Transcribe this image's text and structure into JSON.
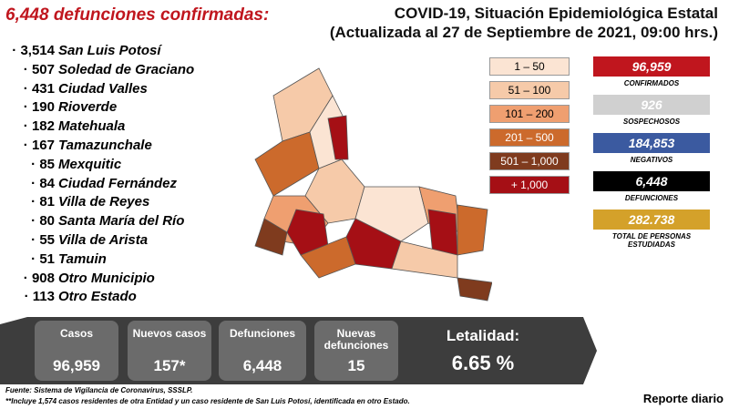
{
  "header": {
    "left_title": "6,448 defunciones confirmadas:",
    "title": "COVID-19, Situación Epidemiológica Estatal",
    "subtitle": "(Actualizada al 27 de Septiembre de 2021, 09:00 hrs.)"
  },
  "municipalities": [
    {
      "count": "3,514",
      "name": "San Luis Potosí"
    },
    {
      "count": "507",
      "name": "Soledad de Graciano"
    },
    {
      "count": "431",
      "name": "Ciudad Valles"
    },
    {
      "count": "190",
      "name": "Rioverde"
    },
    {
      "count": "182",
      "name": "Matehuala"
    },
    {
      "count": "167",
      "name": "Tamazunchale"
    },
    {
      "count": "85",
      "name": "Mexquitic"
    },
    {
      "count": "84",
      "name": "Ciudad Fernández"
    },
    {
      "count": "81",
      "name": "Villa de Reyes"
    },
    {
      "count": "80",
      "name": "Santa María del Río"
    },
    {
      "count": "55",
      "name": "Villa de Arista"
    },
    {
      "count": "51",
      "name": "Tamuin"
    },
    {
      "count": "908",
      "name": "Otro Municipio"
    },
    {
      "count": "113",
      "name": "Otro Estado"
    }
  ],
  "legend": [
    {
      "label": "1 – 50",
      "color": "#fbe4d3",
      "text_color": "#000"
    },
    {
      "label": "51 – 100",
      "color": "#f6caa9",
      "text_color": "#000"
    },
    {
      "label": "101 – 200",
      "color": "#ef9f70",
      "text_color": "#000"
    },
    {
      "label": "201 – 500",
      "color": "#cc6a2c",
      "text_color": "#fff"
    },
    {
      "label": "501 – 1,000",
      "color": "#7f3b1e",
      "text_color": "#fff"
    },
    {
      "label": "+ 1,000",
      "color": "#a50f15",
      "text_color": "#fff"
    }
  ],
  "stats": [
    {
      "value": "96,959",
      "label": "CONFIRMADOS",
      "color": "#c0161e",
      "text_color": "#fff"
    },
    {
      "value": "926",
      "label": "SOSPECHOSOS",
      "color": "#d0d0d0",
      "text_color": "#fff"
    },
    {
      "value": "184,853",
      "label": "NEGATIVOS",
      "color": "#3b5aa0",
      "text_color": "#fff"
    },
    {
      "value": "6,448",
      "label": "DEFUNCIONES",
      "color": "#000000",
      "text_color": "#fff"
    },
    {
      "value": "282.738",
      "label": "TOTAL DE PERSONAS ESTUDIADAS",
      "color": "#d4a12a",
      "text_color": "#fff"
    }
  ],
  "summary": [
    {
      "label": "Casos",
      "value": "96,959"
    },
    {
      "label": "Nuevos casos",
      "value": "157*"
    },
    {
      "label": "Defunciones",
      "value": "6,448"
    },
    {
      "label": "Nuevas defunciones",
      "value": "15"
    },
    {
      "label": "Letalidad:",
      "value": "6.65 %"
    }
  ],
  "footnotes": [
    "Fuente: Sistema de Vigilancia de Coronavirus, SSSLP.",
    "**Incluye 1,574 casos residentes de otra Entidad y un caso residente de San Luis Potosí, identificada en otro Estado."
  ],
  "footer": "Reporte diario"
}
